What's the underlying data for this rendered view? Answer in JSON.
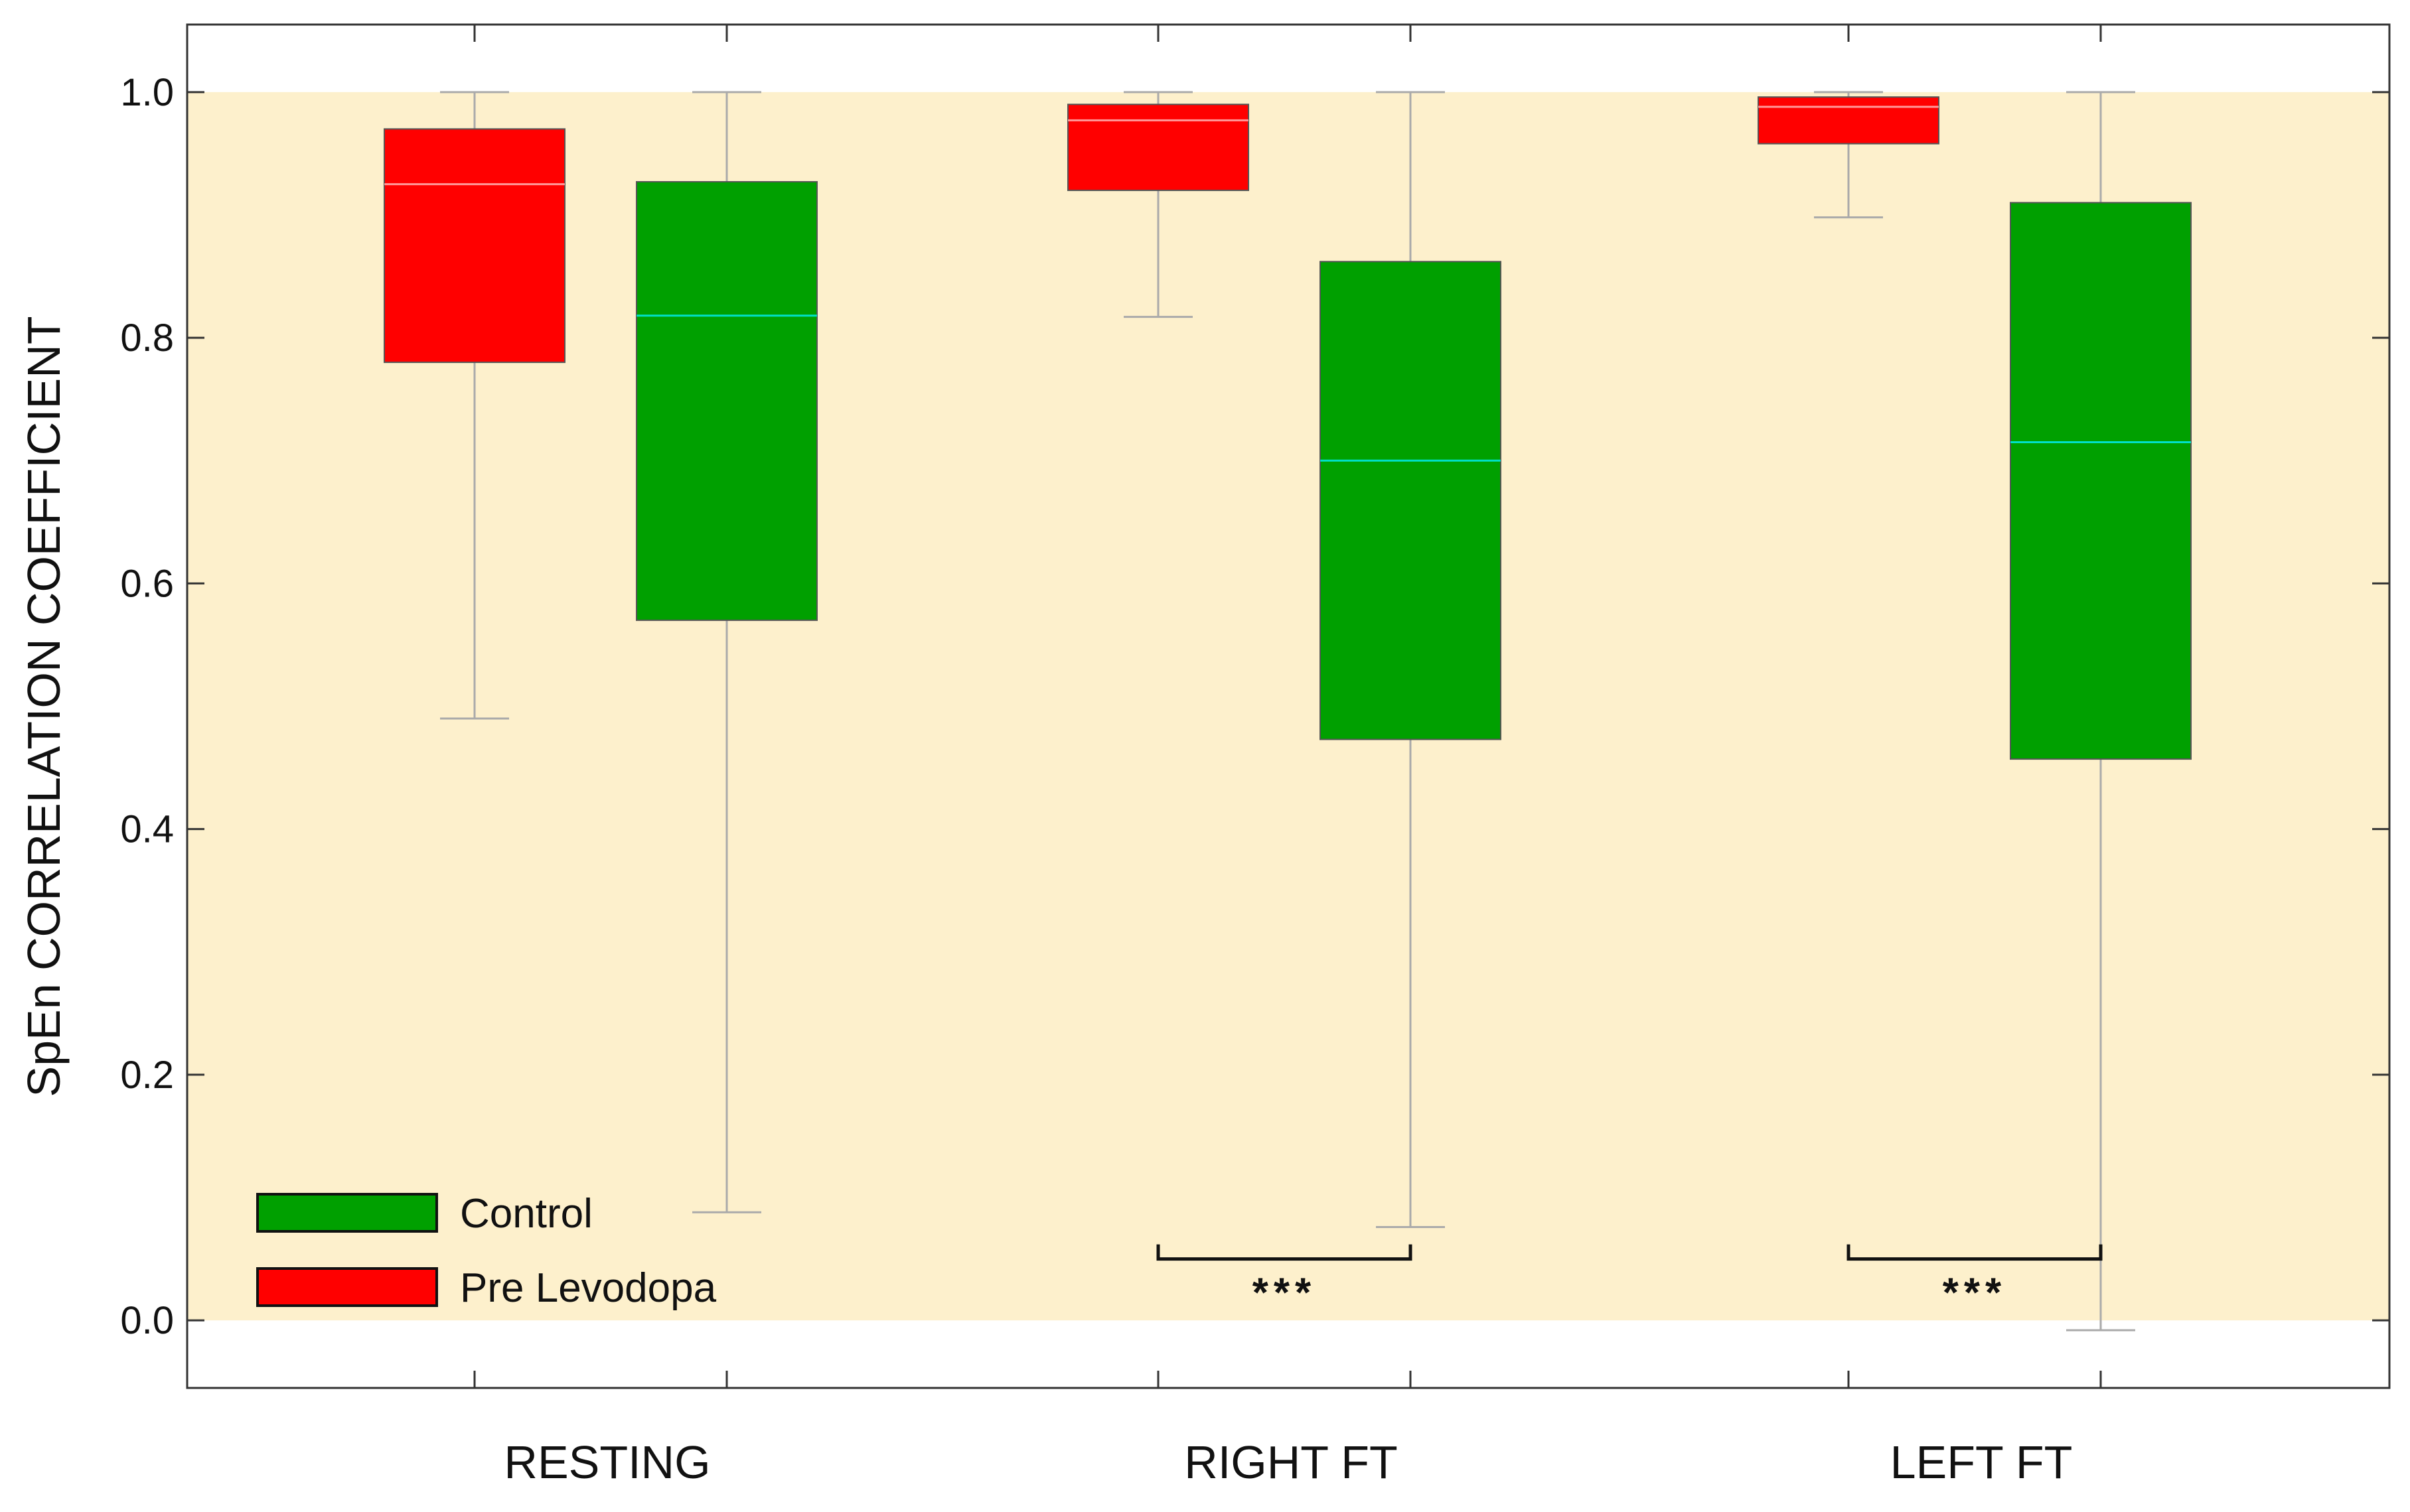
{
  "chart_data": {
    "type": "box",
    "ylabel": "SpEn CORRELATION COEFFICIENT",
    "xlabel": "",
    "ylim": [
      -0.055,
      1.055
    ],
    "yticks": [
      0.0,
      0.2,
      0.4,
      0.6,
      0.8,
      1.0
    ],
    "ytick_labels": [
      "0.0",
      "0.2",
      "0.4",
      "0.6",
      "0.8",
      "1.0"
    ],
    "categories": [
      "RESTING",
      "RIGHT FT",
      "LEFT FT"
    ],
    "shaded_band": [
      0.0,
      1.0
    ],
    "grid": false,
    "legend_position": "bottom-left",
    "series": [
      {
        "name": "Pre Levodopa",
        "color": "#ff0000",
        "median_color": "#ff9a9a",
        "boxes": [
          {
            "whisker_low": 0.49,
            "q1": 0.78,
            "median": 0.925,
            "q3": 0.97,
            "whisker_high": 1.0
          },
          {
            "whisker_low": 0.817,
            "q1": 0.92,
            "median": 0.977,
            "q3": 0.99,
            "whisker_high": 1.0
          },
          {
            "whisker_low": 0.898,
            "q1": 0.958,
            "median": 0.988,
            "q3": 0.996,
            "whisker_high": 1.0
          }
        ]
      },
      {
        "name": "Control",
        "color": "#00a000",
        "median_color": "#00e0c8",
        "boxes": [
          {
            "whisker_low": 0.088,
            "q1": 0.57,
            "median": 0.818,
            "q3": 0.927,
            "whisker_high": 1.0
          },
          {
            "whisker_low": 0.076,
            "q1": 0.473,
            "median": 0.7,
            "q3": 0.862,
            "whisker_high": 1.0
          },
          {
            "whisker_low": -0.008,
            "q1": 0.457,
            "median": 0.715,
            "q3": 0.91,
            "whisker_high": 1.0
          }
        ]
      }
    ],
    "legend": [
      {
        "label": "Control",
        "color": "#00a000"
      },
      {
        "label": "Pre Levodopa",
        "color": "#ff0000"
      }
    ],
    "annotations": [
      {
        "category": "RIGHT FT",
        "text": "***",
        "y": 0.05
      },
      {
        "category": "LEFT FT",
        "text": "***",
        "y": 0.05
      }
    ],
    "colors": {
      "band": "#fdf0cc",
      "axis": "#333333",
      "whisker": "#aaaaaa"
    }
  }
}
